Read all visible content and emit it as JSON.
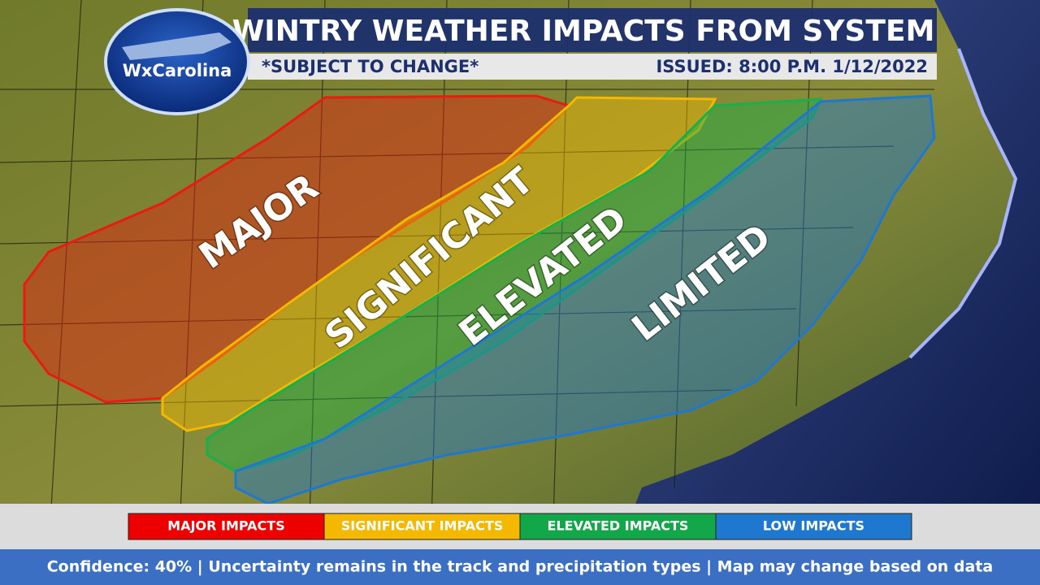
{
  "header": {
    "logo": "WxCarolina",
    "title": "WINTRY WEATHER IMPACTS FROM SYSTEM",
    "subtitle": "*SUBJECT TO CHANGE*",
    "issued": "ISSUED: 8:00 P.M. 1/12/2022"
  },
  "zones": [
    {
      "label": "MAJOR",
      "color": "#e81c10"
    },
    {
      "label": "SIGNIFICANT",
      "color": "#f5b800"
    },
    {
      "label": "ELEVATED",
      "color": "#17b04a"
    },
    {
      "label": "LIMITED",
      "color": "#1f78d0"
    }
  ],
  "legend": [
    {
      "label": "MAJOR IMPACTS",
      "color": "#ee0000"
    },
    {
      "label": "SIGNIFICANT IMPACTS",
      "color": "#f5b800"
    },
    {
      "label": "ELEVATED IMPACTS",
      "color": "#12a84a"
    },
    {
      "label": "LOW IMPACTS",
      "color": "#1f78d0"
    }
  ],
  "footer": "Confidence: 40% | Uncertainty remains in the track and precipitation types | Map may change based on data"
}
